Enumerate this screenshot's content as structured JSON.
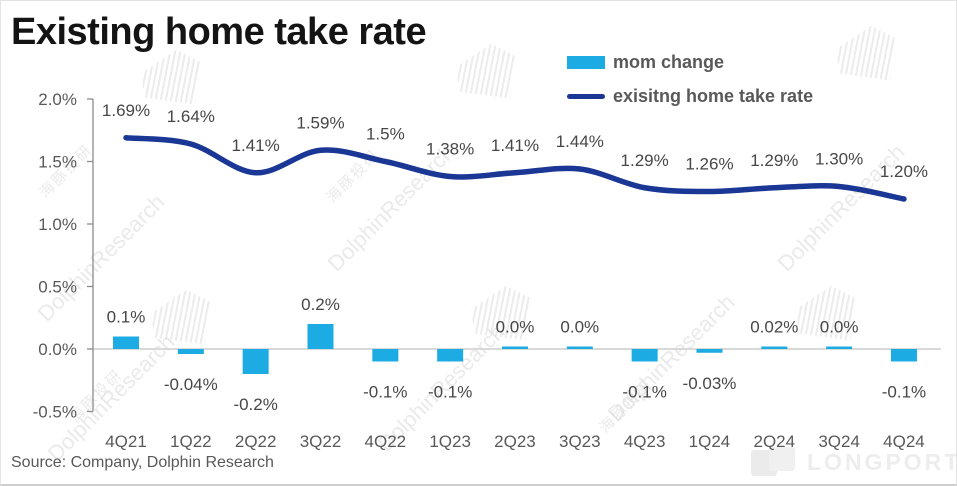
{
  "title": "Existing home take rate",
  "legend": [
    {
      "label": "mom change",
      "type": "bar",
      "color": "#1CACE3"
    },
    {
      "label": "exisitng home take rate",
      "type": "line",
      "color": "#1A3795"
    }
  ],
  "source": "Source: Company, Dolphin Research",
  "watermarks": {
    "diagonal": "DolphinResearch",
    "chinese": "海豚投研",
    "brand": "LONGPORT"
  },
  "chart_data": {
    "type": "combo",
    "categories": [
      "4Q21",
      "1Q22",
      "2Q22",
      "3Q22",
      "4Q22",
      "1Q23",
      "2Q23",
      "3Q23",
      "4Q23",
      "1Q24",
      "2Q24",
      "3Q24",
      "4Q24"
    ],
    "series": [
      {
        "name": "mom change",
        "type": "bar",
        "color": "#1CACE3",
        "values": [
          0.1,
          -0.04,
          -0.2,
          0.2,
          -0.1,
          -0.1,
          0.0,
          0.0,
          -0.1,
          -0.03,
          0.02,
          0.0,
          -0.1
        ],
        "labels": [
          "0.1%",
          "-0.04%",
          "-0.2%",
          "0.2%",
          "-0.1%",
          "-0.1%",
          "0.0%",
          "0.0%",
          "-0.1%",
          "-0.03%",
          "0.02%",
          "0.0%",
          "-0.1%"
        ]
      },
      {
        "name": "exisitng home take rate",
        "type": "line",
        "color": "#1A3795",
        "values": [
          1.69,
          1.64,
          1.41,
          1.59,
          1.5,
          1.38,
          1.41,
          1.44,
          1.29,
          1.26,
          1.29,
          1.3,
          1.2
        ],
        "labels": [
          "1.69%",
          "1.64%",
          "1.41%",
          "1.59%",
          "1.5%",
          "1.38%",
          "1.41%",
          "1.44%",
          "1.29%",
          "1.26%",
          "1.29%",
          "1.30%",
          "1.20%"
        ]
      }
    ],
    "y_axis": {
      "ticks": [
        "2.0%",
        "1.5%",
        "1.0%",
        "0.5%",
        "0.0%",
        "-0.5%"
      ],
      "min": -0.5,
      "max": 2.0,
      "unit": "%"
    },
    "grid": "zero-baseline-only",
    "legend_position": "top-right",
    "title": "Existing home take rate"
  }
}
